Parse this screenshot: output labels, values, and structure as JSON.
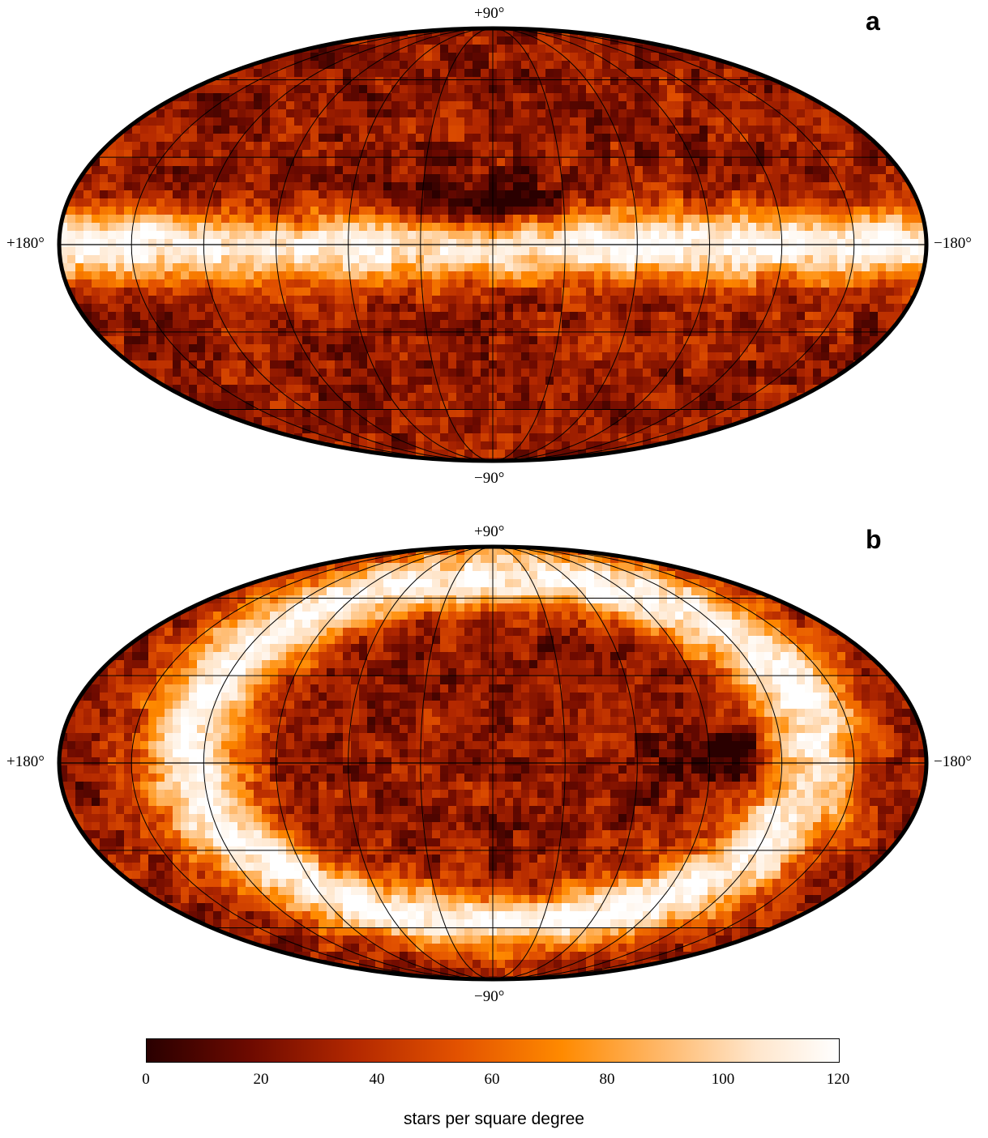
{
  "panels": [
    {
      "letter": "a",
      "label_north": "+90°",
      "label_south": "−90°",
      "label_west": "+180°",
      "label_east": "−180°",
      "pattern": "horizontal-band"
    },
    {
      "letter": "b",
      "label_north": "+90°",
      "label_south": "−90°",
      "label_west": "+180°",
      "label_east": "−180°",
      "pattern": "tilted-ring"
    }
  ],
  "colorbar": {
    "ticks": [
      "0",
      "20",
      "40",
      "60",
      "80",
      "100",
      "120"
    ],
    "range": [
      0,
      120
    ],
    "label": "stars per square degree",
    "colors": [
      "#2a0000",
      "#6e0a00",
      "#b32800",
      "#e35200",
      "#ff8a00",
      "#ffba6e",
      "#ffe6cc",
      "#ffffff"
    ]
  },
  "projection": "Mollweide",
  "graticule": {
    "parallels_deg": [
      -60,
      -30,
      0,
      30,
      60
    ],
    "meridians_deg": [
      -150,
      -120,
      -90,
      -60,
      -30,
      0,
      30,
      60,
      90,
      120,
      150
    ]
  }
}
